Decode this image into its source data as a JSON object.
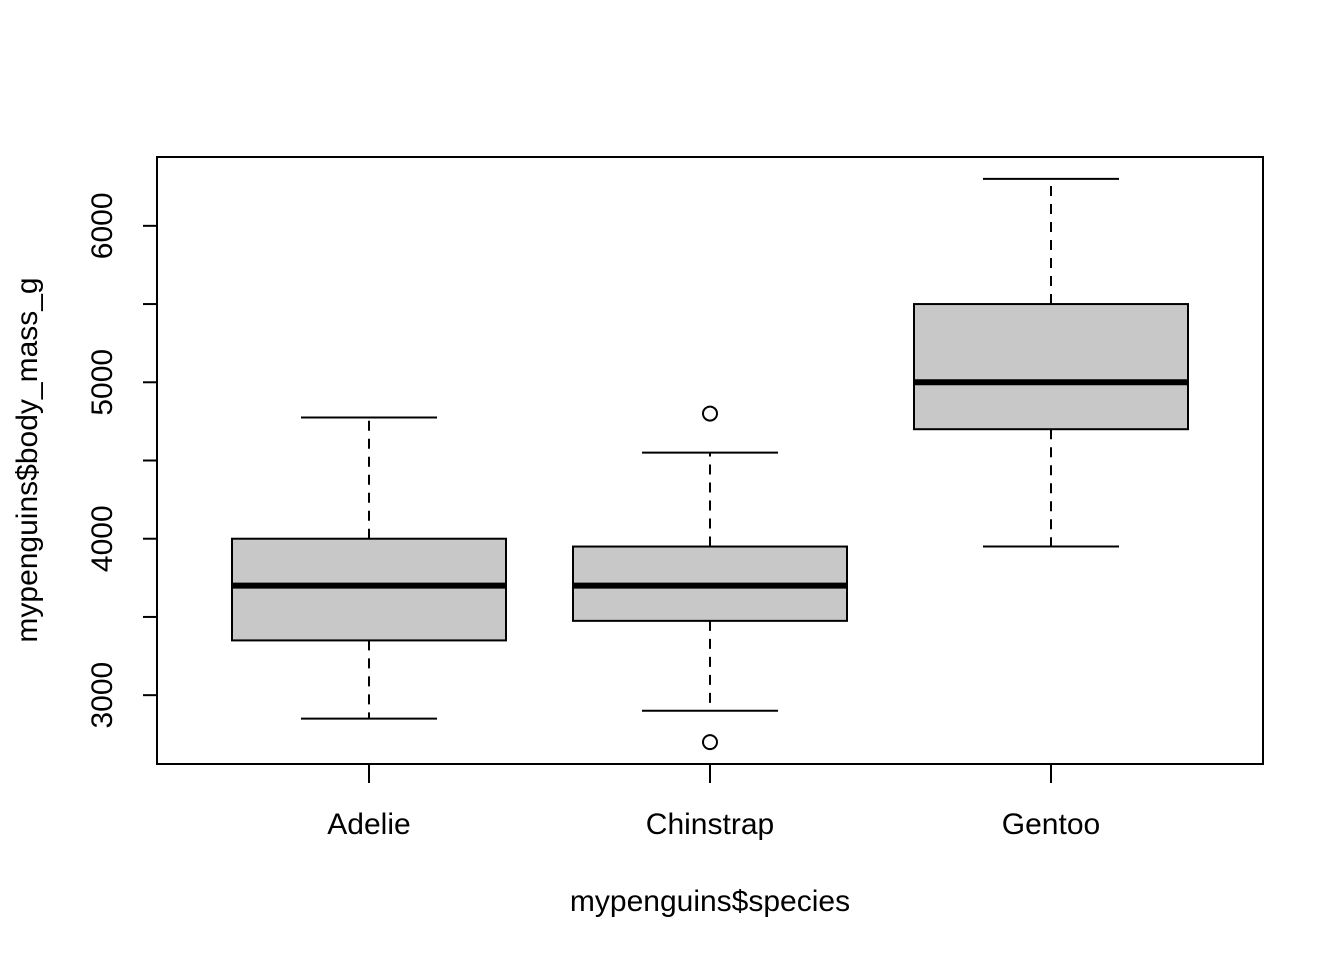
{
  "chart_data": {
    "type": "boxplot",
    "title": "",
    "xlabel": "mypenguins$species",
    "ylabel": "mypenguins$body_mass_g",
    "ylim": [
      2560,
      6440
    ],
    "yticks": [
      3000,
      3500,
      4000,
      4500,
      5000,
      5500,
      6000
    ],
    "ytick_labels": [
      "3000",
      "",
      "4000",
      "",
      "5000",
      "",
      "6000"
    ],
    "categories": [
      "Adelie",
      "Chinstrap",
      "Gentoo"
    ],
    "box_fill": "#c8c8c8",
    "boxes": [
      {
        "category": "Adelie",
        "whisker_low": 2850,
        "q1": 3350,
        "median": 3700,
        "q3": 4000,
        "whisker_high": 4775,
        "outliers": []
      },
      {
        "category": "Chinstrap",
        "whisker_low": 2900,
        "q1": 3475,
        "median": 3700,
        "q3": 3950,
        "whisker_high": 4550,
        "outliers": [
          2700,
          4800
        ]
      },
      {
        "category": "Gentoo",
        "whisker_low": 3950,
        "q1": 4700,
        "median": 5000,
        "q3": 5500,
        "whisker_high": 6300,
        "outliers": []
      }
    ]
  }
}
